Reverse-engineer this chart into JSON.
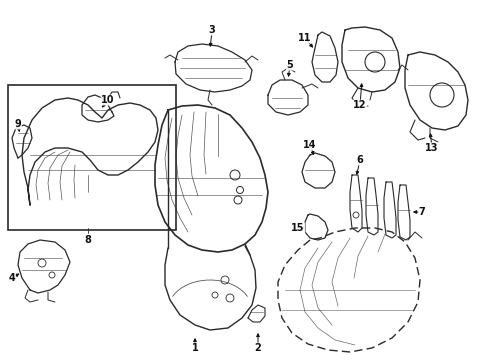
{
  "bg_color": "#ffffff",
  "line_color": "#2a2a2a",
  "label_color": "#111111",
  "figsize": [
    4.89,
    3.6
  ],
  "dpi": 100,
  "xlim": [
    0,
    489
  ],
  "ylim": [
    0,
    360
  ]
}
